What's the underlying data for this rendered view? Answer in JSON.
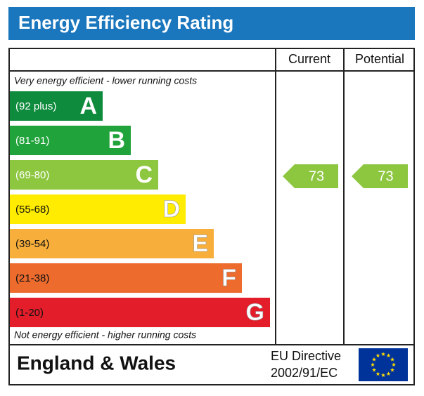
{
  "title": "Energy Efficiency Rating",
  "header": {
    "current": "Current",
    "potential": "Potential"
  },
  "top_note": "Very energy efficient - lower running costs",
  "bands": [
    {
      "range": "(92 plus)",
      "letter": "A"
    },
    {
      "range": "(81-91)",
      "letter": "B"
    },
    {
      "range": "(69-80)",
      "letter": "C"
    },
    {
      "range": "(55-68)",
      "letter": "D"
    },
    {
      "range": "(39-54)",
      "letter": "E"
    },
    {
      "range": "(21-38)",
      "letter": "F"
    },
    {
      "range": "(1-20)",
      "letter": "G"
    }
  ],
  "bottom_note": "Not energy efficient - higher running costs",
  "current_rating": 73,
  "potential_rating": 73,
  "footer": {
    "region": "England & Wales",
    "directive_line1": "EU Directive",
    "directive_line2": "2002/91/EC"
  }
}
